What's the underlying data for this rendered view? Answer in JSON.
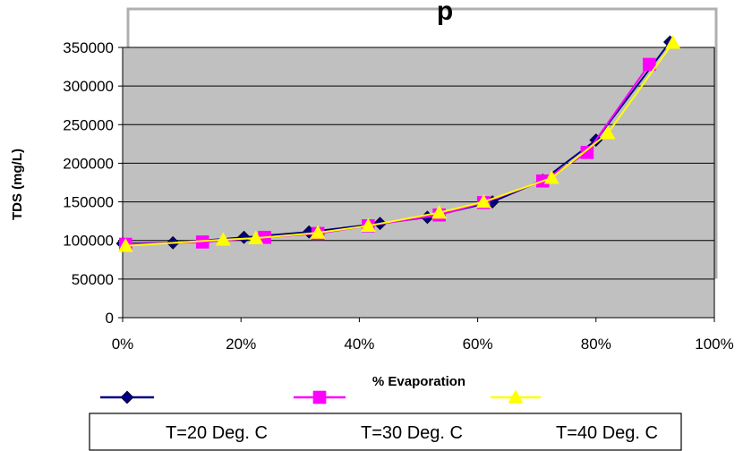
{
  "chart_data": {
    "type": "line",
    "title": "p",
    "xlabel": "% Evaporation",
    "ylabel": "TDS (mg/L)",
    "xlim": [
      0,
      100
    ],
    "ylim": [
      0,
      350000
    ],
    "x_unit": "%",
    "x_ticks": [
      "0%",
      "20%",
      "40%",
      "60%",
      "80%",
      "100%"
    ],
    "y_ticks": [
      "0",
      "50000",
      "100000",
      "150000",
      "200000",
      "250000",
      "300000",
      "350000"
    ],
    "grid": "horizontal",
    "plot_background": "#c0c0c0",
    "legend_position": "bottom",
    "series": [
      {
        "name": "T=20 Deg. C",
        "color": "#000080",
        "marker": "diamond",
        "x": [
          0,
          8.5,
          20.5,
          31.5,
          43.5,
          51.5,
          62.5,
          71,
          80,
          92.5
        ],
        "y": [
          96000,
          97000,
          104000,
          111000,
          122000,
          130000,
          150000,
          178000,
          230000,
          357000
        ]
      },
      {
        "name": "T=30 Deg. C",
        "color": "#ff00ff",
        "marker": "square",
        "x": [
          0.5,
          13.5,
          24,
          33,
          41.5,
          53.5,
          61,
          71,
          78.5,
          89
        ],
        "y": [
          95000,
          98000,
          104000,
          109000,
          119000,
          133000,
          149000,
          177000,
          214000,
          328000
        ]
      },
      {
        "name": "T=40 Deg. C",
        "color": "#ffff00",
        "marker": "triangle",
        "x": [
          0.5,
          17,
          22.5,
          33,
          41.5,
          53.5,
          61,
          72.5,
          82,
          93
        ],
        "y": [
          93000,
          101000,
          103000,
          110000,
          119000,
          136000,
          150000,
          181000,
          239000,
          356000
        ]
      }
    ]
  }
}
